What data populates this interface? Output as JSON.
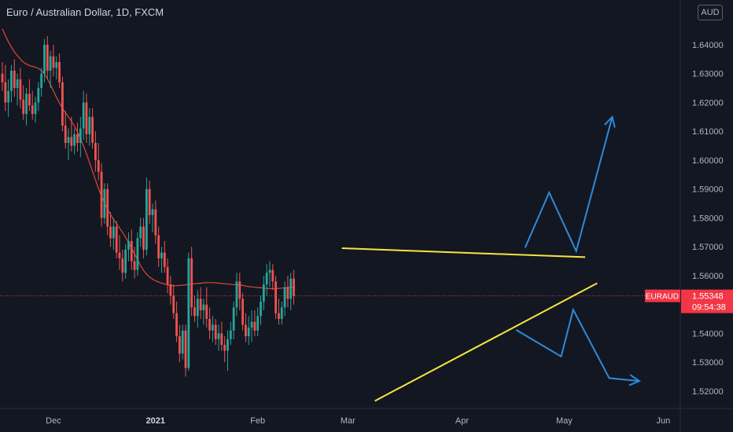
{
  "chart_data": {
    "type": "candlestick",
    "title": "Euro / Australian Dollar, 1D, FXCM",
    "currency": "AUD",
    "symbol": "EURAUD",
    "last_price_label": "1.55348",
    "countdown": "09:54:38",
    "ylim": [
      1.514,
      1.6555
    ],
    "y_ticks": [
      "1.52000",
      "1.53000",
      "1.54000",
      "1.55000",
      "1.56000",
      "1.57000",
      "1.58000",
      "1.59000",
      "1.60000",
      "1.61000",
      "1.62000",
      "1.63000",
      "1.64000"
    ],
    "x_ticks": [
      {
        "label": "Dec",
        "index": 17
      },
      {
        "label": "2021",
        "index": 51
      },
      {
        "label": "Feb",
        "index": 85
      },
      {
        "label": "Mar",
        "index": 115
      },
      {
        "label": "Apr",
        "index": 153
      },
      {
        "label": "May",
        "index": 187
      },
      {
        "label": "Jun",
        "index": 220
      }
    ],
    "candles": [
      [
        1.63,
        1.634,
        1.624,
        1.627
      ],
      [
        1.627,
        1.633,
        1.617,
        1.62
      ],
      [
        1.62,
        1.628,
        1.615,
        1.624
      ],
      [
        1.624,
        1.633,
        1.62,
        1.631
      ],
      [
        1.631,
        1.635,
        1.622,
        1.625
      ],
      [
        1.625,
        1.63,
        1.619,
        1.628
      ],
      [
        1.628,
        1.632,
        1.618,
        1.621
      ],
      [
        1.621,
        1.626,
        1.614,
        1.616
      ],
      [
        1.616,
        1.625,
        1.612,
        1.623
      ],
      [
        1.623,
        1.628,
        1.617,
        1.619
      ],
      [
        1.619,
        1.624,
        1.614,
        1.616
      ],
      [
        1.616,
        1.622,
        1.613,
        1.62
      ],
      [
        1.62,
        1.627,
        1.617,
        1.625
      ],
      [
        1.625,
        1.632,
        1.622,
        1.63
      ],
      [
        1.63,
        1.642,
        1.627,
        1.64
      ],
      [
        1.64,
        1.643,
        1.628,
        1.631
      ],
      [
        1.631,
        1.638,
        1.625,
        1.636
      ],
      [
        1.636,
        1.64,
        1.629,
        1.632
      ],
      [
        1.632,
        1.636,
        1.628,
        1.634
      ],
      [
        1.634,
        1.637,
        1.625,
        1.627
      ],
      [
        1.627,
        1.629,
        1.61,
        1.612
      ],
      [
        1.612,
        1.617,
        1.604,
        1.606
      ],
      [
        1.606,
        1.611,
        1.6,
        1.608
      ],
      [
        1.608,
        1.615,
        1.603,
        1.605
      ],
      [
        1.605,
        1.611,
        1.602,
        1.609
      ],
      [
        1.609,
        1.613,
        1.603,
        1.606
      ],
      [
        1.606,
        1.615,
        1.601,
        1.611
      ],
      [
        1.611,
        1.624,
        1.607,
        1.62
      ],
      [
        1.62,
        1.623,
        1.606,
        1.609
      ],
      [
        1.609,
        1.618,
        1.605,
        1.615
      ],
      [
        1.615,
        1.618,
        1.604,
        1.606
      ],
      [
        1.606,
        1.61,
        1.596,
        1.6
      ],
      [
        1.6,
        1.606,
        1.593,
        1.596
      ],
      [
        1.596,
        1.599,
        1.577,
        1.58
      ],
      [
        1.58,
        1.592,
        1.578,
        1.59
      ],
      [
        1.59,
        1.592,
        1.574,
        1.577
      ],
      [
        1.577,
        1.582,
        1.57,
        1.573
      ],
      [
        1.573,
        1.58,
        1.569,
        1.577
      ],
      [
        1.577,
        1.579,
        1.566,
        1.568
      ],
      [
        1.568,
        1.574,
        1.562,
        1.566
      ],
      [
        1.566,
        1.569,
        1.558,
        1.561
      ],
      [
        1.561,
        1.571,
        1.559,
        1.569
      ],
      [
        1.569,
        1.575,
        1.565,
        1.572
      ],
      [
        1.572,
        1.576,
        1.562,
        1.565
      ],
      [
        1.565,
        1.57,
        1.559,
        1.562
      ],
      [
        1.562,
        1.575,
        1.56,
        1.573
      ],
      [
        1.573,
        1.58,
        1.57,
        1.577
      ],
      [
        1.577,
        1.58,
        1.566,
        1.569
      ],
      [
        1.569,
        1.594,
        1.567,
        1.59
      ],
      [
        1.59,
        1.593,
        1.578,
        1.581
      ],
      [
        1.581,
        1.585,
        1.575,
        1.583
      ],
      [
        1.583,
        1.586,
        1.571,
        1.574
      ],
      [
        1.574,
        1.577,
        1.563,
        1.566
      ],
      [
        1.566,
        1.57,
        1.561,
        1.568
      ],
      [
        1.568,
        1.572,
        1.561,
        1.563
      ],
      [
        1.563,
        1.566,
        1.554,
        1.557
      ],
      [
        1.557,
        1.56,
        1.55,
        1.553
      ],
      [
        1.553,
        1.557,
        1.545,
        1.547
      ],
      [
        1.547,
        1.551,
        1.537,
        1.539
      ],
      [
        1.539,
        1.543,
        1.53,
        1.533
      ],
      [
        1.533,
        1.543,
        1.531,
        1.541
      ],
      [
        1.541,
        1.543,
        1.525,
        1.528
      ],
      [
        1.528,
        1.568,
        1.527,
        1.566
      ],
      [
        1.566,
        1.57,
        1.546,
        1.549
      ],
      [
        1.549,
        1.553,
        1.544,
        1.546
      ],
      [
        1.546,
        1.555,
        1.542,
        1.552
      ],
      [
        1.552,
        1.556,
        1.545,
        1.548
      ],
      [
        1.548,
        1.552,
        1.543,
        1.55
      ],
      [
        1.55,
        1.556,
        1.542,
        1.545
      ],
      [
        1.545,
        1.549,
        1.538,
        1.541
      ],
      [
        1.541,
        1.546,
        1.537,
        1.543
      ],
      [
        1.543,
        1.545,
        1.536,
        1.538
      ],
      [
        1.538,
        1.543,
        1.534,
        1.54
      ],
      [
        1.54,
        1.544,
        1.534,
        1.536
      ],
      [
        1.536,
        1.539,
        1.53,
        1.534
      ],
      [
        1.534,
        1.541,
        1.527,
        1.538
      ],
      [
        1.538,
        1.544,
        1.536,
        1.541
      ],
      [
        1.541,
        1.551,
        1.538,
        1.549
      ],
      [
        1.549,
        1.561,
        1.546,
        1.558
      ],
      [
        1.558,
        1.561,
        1.548,
        1.552
      ],
      [
        1.552,
        1.554,
        1.541,
        1.543
      ],
      [
        1.543,
        1.547,
        1.537,
        1.539
      ],
      [
        1.539,
        1.546,
        1.536,
        1.542
      ],
      [
        1.542,
        1.548,
        1.537,
        1.544
      ],
      [
        1.544,
        1.548,
        1.539,
        1.541
      ],
      [
        1.541,
        1.549,
        1.539,
        1.546
      ],
      [
        1.546,
        1.553,
        1.543,
        1.551
      ],
      [
        1.551,
        1.56,
        1.548,
        1.557
      ],
      [
        1.557,
        1.564,
        1.553,
        1.561
      ],
      [
        1.561,
        1.565,
        1.556,
        1.562
      ],
      [
        1.562,
        1.564,
        1.555,
        1.558
      ],
      [
        1.558,
        1.56,
        1.545,
        1.547
      ],
      [
        1.547,
        1.552,
        1.543,
        1.545
      ],
      [
        1.545,
        1.551,
        1.543,
        1.549
      ],
      [
        1.549,
        1.558,
        1.546,
        1.556
      ],
      [
        1.556,
        1.56,
        1.549,
        1.552
      ],
      [
        1.552,
        1.561,
        1.548,
        1.559
      ],
      [
        1.559,
        1.562,
        1.55,
        1.553
      ]
    ],
    "moving_average": [
      1.6455,
      1.6432,
      1.641,
      1.6392,
      1.6375,
      1.6362,
      1.635,
      1.634,
      1.6333,
      1.6328,
      1.6325,
      1.6322,
      1.6318,
      1.631,
      1.6298,
      1.6282,
      1.6262,
      1.624,
      1.6218,
      1.6198,
      1.618,
      1.6165,
      1.615,
      1.6135,
      1.6118,
      1.6098,
      1.6075,
      1.605,
      1.6022,
      1.5992,
      1.5962,
      1.5932,
      1.5902,
      1.5875,
      1.5852,
      1.583,
      1.5812,
      1.5795,
      1.578,
      1.5765,
      1.575,
      1.5733,
      1.5715,
      1.5695,
      1.5675,
      1.5655,
      1.5635,
      1.5618,
      1.5605,
      1.5595,
      1.5588,
      1.5582,
      1.5578,
      1.5574,
      1.5571,
      1.5568,
      1.5566,
      1.5565,
      1.5565,
      1.5566,
      1.5567,
      1.5568,
      1.557,
      1.5571,
      1.5572,
      1.5573,
      1.5574,
      1.5575,
      1.5576,
      1.5576,
      1.5576,
      1.5575,
      1.5574,
      1.5573,
      1.5572,
      1.5571,
      1.557,
      1.5569,
      1.5568,
      1.5567,
      1.5566,
      1.5564,
      1.5562,
      1.5561,
      1.556,
      1.5559,
      1.5558,
      1.5557,
      1.5556,
      1.5555,
      1.5555,
      1.5555,
      1.5556,
      1.5557,
      1.5558,
      1.5559,
      1.556,
      1.5561
    ],
    "trendlines": [
      {
        "color": "#f5e642",
        "from": [
          113,
          1.5695
        ],
        "to": [
          194,
          1.5664
        ]
      },
      {
        "color": "#f5e642",
        "from": [
          124,
          1.5166
        ],
        "to": [
          198,
          1.5574
        ]
      }
    ],
    "arrows": [
      {
        "color": "#2e8ad9",
        "points": [
          [
            174,
            1.5697
          ],
          [
            182,
            1.5888
          ],
          [
            191,
            1.5685
          ],
          [
            203,
            1.615
          ]
        ]
      },
      {
        "color": "#2e8ad9",
        "points": [
          [
            171,
            1.5412
          ],
          [
            186,
            1.532
          ],
          [
            190,
            1.5482
          ],
          [
            202,
            1.5245
          ],
          [
            212,
            1.5235
          ]
        ]
      }
    ],
    "colors": {
      "up": "#26a69a",
      "down": "#ef5350",
      "ma": "#e0463a",
      "label_bg": "#f23645",
      "grid": "#1e222d"
    }
  }
}
